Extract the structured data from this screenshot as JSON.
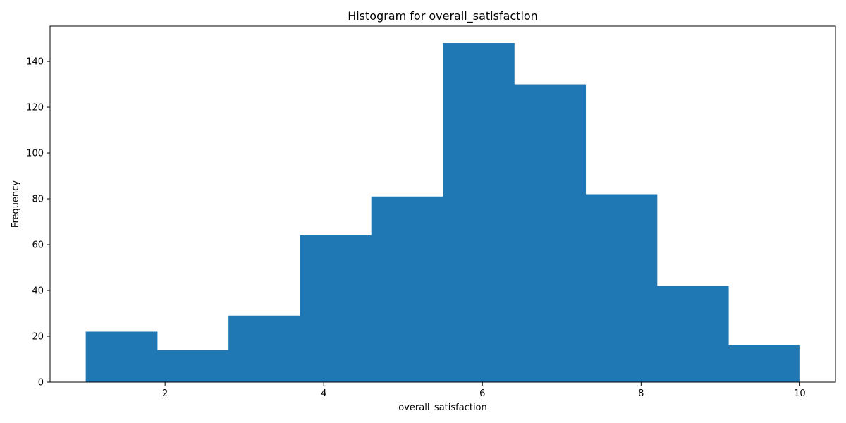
{
  "chart_data": {
    "type": "bar",
    "title": "Histogram for overall_satisfaction",
    "xlabel": "overall_satisfaction",
    "ylabel": "Frequency",
    "bin_edges": [
      1.0,
      1.9,
      2.8,
      3.7,
      4.6,
      5.5,
      6.4,
      7.3,
      8.2,
      9.1,
      10.0
    ],
    "values": [
      22,
      14,
      29,
      64,
      81,
      148,
      130,
      82,
      42,
      16
    ],
    "xlim": [
      0.55,
      10.45
    ],
    "ylim": [
      0,
      155.4
    ],
    "x_ticks": [
      2,
      4,
      6,
      8,
      10
    ],
    "x_tick_labels": [
      "2",
      "4",
      "6",
      "8",
      "10"
    ],
    "y_ticks": [
      0,
      20,
      40,
      60,
      80,
      100,
      120,
      140
    ],
    "y_tick_labels": [
      "0",
      "20",
      "40",
      "60",
      "80",
      "100",
      "120",
      "140"
    ],
    "bar_color": "#1f77b4",
    "grid": false,
    "legend": "none"
  }
}
